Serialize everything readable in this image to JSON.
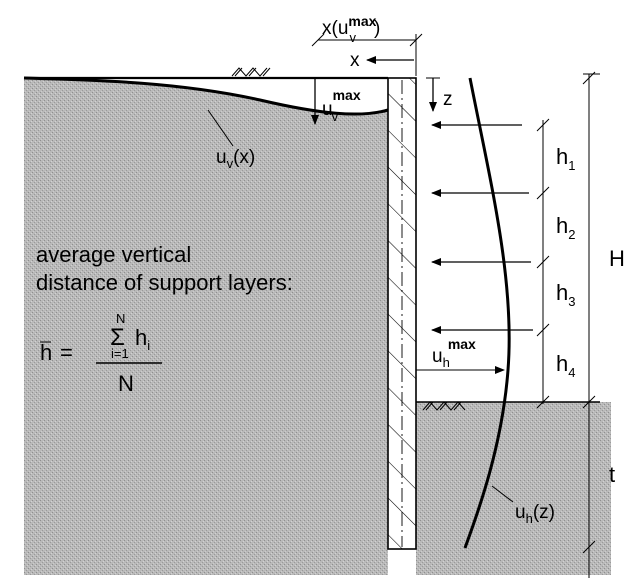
{
  "labels": {
    "x_umax_main": "x(u",
    "x_umax_sub": "v",
    "x_umax_sup": "max",
    "x_umax_close": ")",
    "x": "x",
    "z": "z",
    "uv_max_main": "u",
    "uv_max_sub": "v",
    "uv_max_sup": "max",
    "uvx_main": "u",
    "uvx_sub": "v",
    "uvx_arg": "(x)",
    "h1_main": "h",
    "h1_sub": "1",
    "h2_main": "h",
    "h2_sub": "2",
    "h3_main": "h",
    "h3_sub": "3",
    "h4_main": "h",
    "h4_sub": "4",
    "H": "H",
    "t": "t",
    "uh_max_main": "u",
    "uh_max_sub": "h",
    "uh_max_sup": "max",
    "uhz_main": "u",
    "uhz_sub": "h",
    "uhz_arg": "(z)"
  },
  "annotation": {
    "line1": "average vertical",
    "line2": "distance of support layers:"
  },
  "formula": {
    "hbar": "h",
    "equals": "=",
    "sum_top": "N",
    "sum_symbol": "Σ",
    "sum_bottom": "i=1",
    "term_main": "h",
    "term_sub": "i",
    "denominator": "N"
  },
  "colors": {
    "soil": "#b7b7b7",
    "ink": "#000000",
    "wall_fill": "#ffffff"
  }
}
